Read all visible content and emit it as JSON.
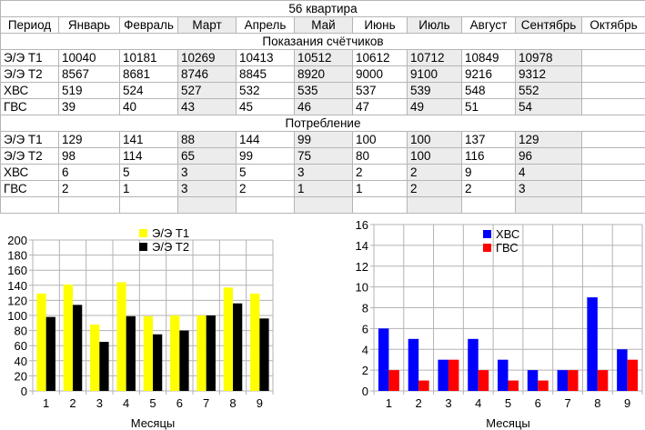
{
  "sheet": {
    "title": "56 квартира",
    "period_label": "Период",
    "months": [
      "Январь",
      "Февраль",
      "Март",
      "Апрель",
      "Май",
      "Июнь",
      "Июль",
      "Август",
      "Сентябрь",
      "Октябрь"
    ],
    "readings_title": "Показания счётчиков",
    "readings": [
      {
        "label": "Э/Э Т1",
        "values": [
          "10040",
          "10181",
          "10269",
          "10413",
          "10512",
          "10612",
          "10712",
          "10849",
          "10978",
          ""
        ]
      },
      {
        "label": "Э/Э Т2",
        "values": [
          "8567",
          "8681",
          "8746",
          "8845",
          "8920",
          "9000",
          "9100",
          "9216",
          "9312",
          ""
        ]
      },
      {
        "label": "ХВС",
        "values": [
          "519",
          "524",
          "527",
          "532",
          "535",
          "537",
          "539",
          "548",
          "552",
          ""
        ]
      },
      {
        "label": "ГВС",
        "values": [
          "39",
          "40",
          "43",
          "45",
          "46",
          "47",
          "49",
          "51",
          "54",
          ""
        ]
      }
    ],
    "consumption_title": "Потребление",
    "consumption": [
      {
        "label": "Э/Э Т1",
        "values": [
          "129",
          "141",
          "88",
          "144",
          "99",
          "100",
          "100",
          "137",
          "129",
          ""
        ]
      },
      {
        "label": "Э/Э Т2",
        "values": [
          "98",
          "114",
          "65",
          "99",
          "75",
          "80",
          "100",
          "116",
          "96",
          ""
        ]
      },
      {
        "label": "ХВС",
        "values": [
          "6",
          "5",
          "3",
          "5",
          "3",
          "2",
          "2",
          "9",
          "4",
          ""
        ]
      },
      {
        "label": "ГВС",
        "values": [
          "2",
          "1",
          "3",
          "2",
          "1",
          "1",
          "2",
          "2",
          "3",
          ""
        ]
      }
    ]
  },
  "chart_data": [
    {
      "type": "bar",
      "categories": [
        "1",
        "2",
        "3",
        "4",
        "5",
        "6",
        "7",
        "8",
        "9"
      ],
      "series": [
        {
          "name": "Э/Э Т1",
          "color": "#ffff00",
          "values": [
            129,
            141,
            88,
            144,
            99,
            100,
            100,
            137,
            129
          ]
        },
        {
          "name": "Э/Э Т2",
          "color": "#000000",
          "values": [
            98,
            114,
            65,
            99,
            75,
            80,
            100,
            116,
            96
          ]
        }
      ],
      "title": "",
      "xlabel": "Месяцы",
      "ylabel": "",
      "ylim": [
        0,
        200
      ],
      "yticks": [
        0,
        20,
        40,
        60,
        80,
        100,
        120,
        140,
        160,
        180,
        200
      ],
      "grid": true,
      "legend": "top-center"
    },
    {
      "type": "bar",
      "categories": [
        "1",
        "2",
        "3",
        "4",
        "5",
        "6",
        "7",
        "8",
        "9"
      ],
      "series": [
        {
          "name": "ХВС",
          "color": "#0000ff",
          "values": [
            6,
            5,
            3,
            5,
            3,
            2,
            2,
            9,
            4
          ]
        },
        {
          "name": "ГВС",
          "color": "#ff0000",
          "values": [
            2,
            1,
            3,
            2,
            1,
            1,
            2,
            2,
            3
          ]
        }
      ],
      "title": "",
      "xlabel": "Месяцы",
      "ylabel": "",
      "ylim": [
        0,
        16
      ],
      "yticks": [
        0,
        2,
        4,
        6,
        8,
        10,
        12,
        14,
        16
      ],
      "grid": true,
      "legend": "top-center"
    }
  ]
}
